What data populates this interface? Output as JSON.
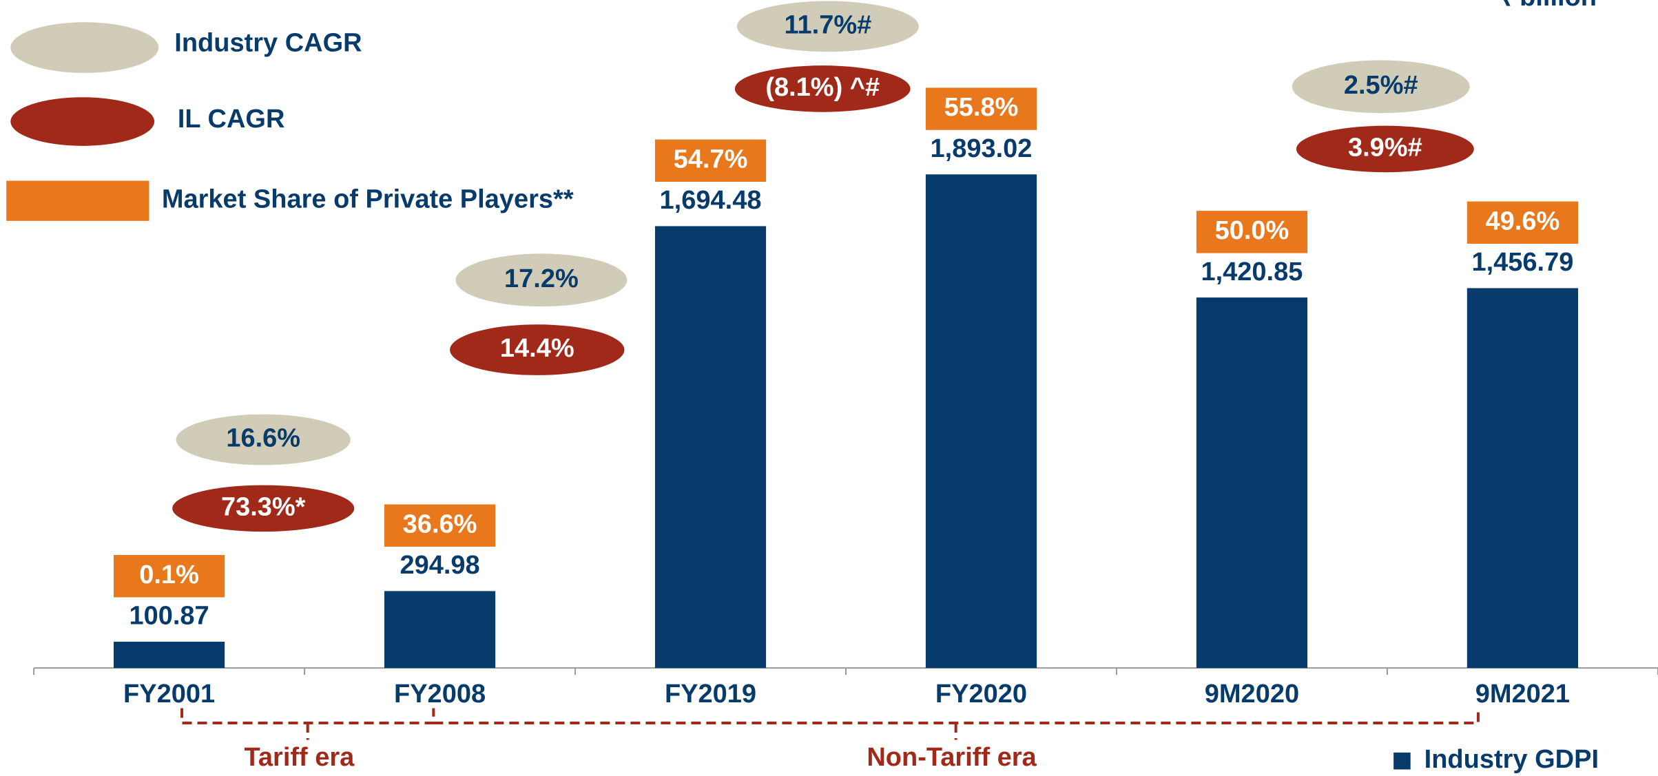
{
  "chart_data": {
    "type": "bar",
    "unit_label": "₹ billion",
    "categories": [
      "FY2001",
      "FY2008",
      "FY2019",
      "FY2020",
      "9M2020",
      "9M2021"
    ],
    "series": [
      {
        "name": "Industry GDPI",
        "color": "#073b6c",
        "values": [
          100.87,
          294.98,
          1694.48,
          1893.02,
          1420.85,
          1456.79
        ],
        "value_labels": [
          "100.87",
          "294.98",
          "1,694.48",
          "1,893.02",
          "1,420.85",
          "1,456.79"
        ]
      }
    ],
    "market_share": {
      "name": "Market Share of Private Players**",
      "color": "#e8781b",
      "values": [
        0.1,
        36.6,
        54.7,
        55.8,
        50.0,
        49.6
      ],
      "value_labels": [
        "0.1%",
        "36.6%",
        "54.7%",
        "55.8%",
        "50.0%",
        "49.6%"
      ]
    },
    "industry_cagr": {
      "name": "Industry CAGR",
      "color": "#d1ccb8",
      "labels": [
        "16.6%",
        "17.2%",
        "11.7%#",
        "2.5%#"
      ]
    },
    "il_cagr": {
      "name": "IL CAGR",
      "color": "#a0291a",
      "labels": [
        "73.3%*",
        "14.4%",
        "(8.1%) ^#",
        "3.9%#"
      ]
    },
    "eras": [
      "Tariff era",
      "Non-Tariff era"
    ],
    "ylim": [
      0,
      2000
    ]
  }
}
